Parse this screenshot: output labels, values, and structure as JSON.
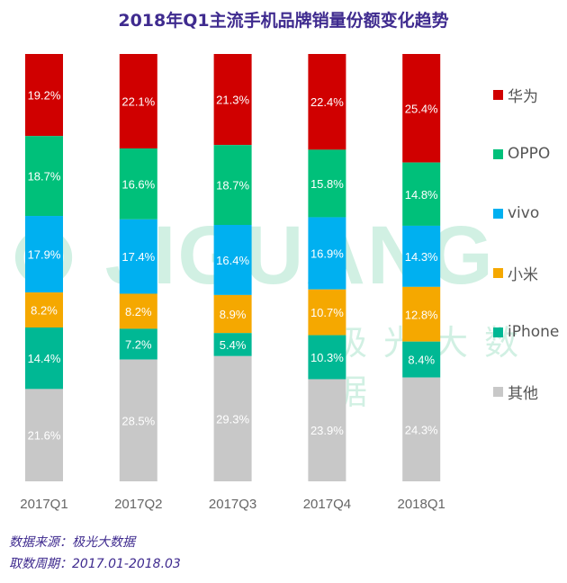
{
  "watermark": {
    "logo": "JIGUANG",
    "sub": "极光大数据"
  },
  "footer": {
    "source": "数据来源：极光大数据",
    "period": "取数周期：2017.01-2018.03"
  },
  "chart_data": {
    "type": "bar",
    "stacked": true,
    "title": "2018年Q1主流手机品牌销量份额变化趋势",
    "categories": [
      "2017Q1",
      "2017Q2",
      "2017Q3",
      "2017Q4",
      "2018Q1"
    ],
    "ylim": [
      0,
      100
    ],
    "unit": "%",
    "grid": false,
    "legend_position": "right",
    "series": [
      {
        "name": "华为",
        "color": "#d00000",
        "values": [
          19.2,
          22.1,
          21.3,
          22.4,
          25.4
        ]
      },
      {
        "name": "OPPO",
        "color": "#00c07a",
        "values": [
          18.7,
          16.6,
          18.7,
          15.8,
          14.8
        ]
      },
      {
        "name": "vivo",
        "color": "#00b0f0",
        "values": [
          17.9,
          17.4,
          16.4,
          16.9,
          14.3
        ]
      },
      {
        "name": "小米",
        "color": "#f5a800",
        "values": [
          8.2,
          8.2,
          8.9,
          10.7,
          12.8
        ]
      },
      {
        "name": "iPhone",
        "color": "#00b894",
        "values": [
          14.4,
          7.2,
          5.4,
          10.3,
          8.4
        ]
      },
      {
        "name": "其他",
        "color": "#c8c8c8",
        "values": [
          21.6,
          28.5,
          29.3,
          23.9,
          24.3
        ]
      }
    ]
  }
}
